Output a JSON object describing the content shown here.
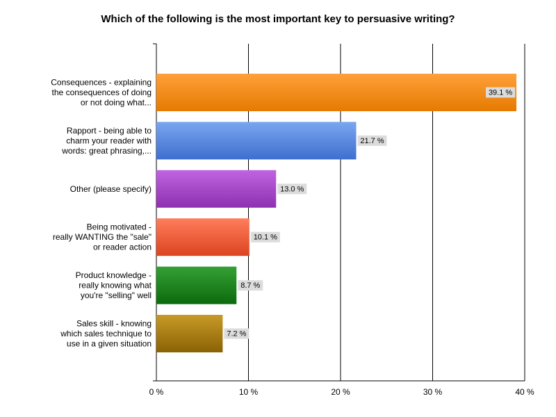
{
  "chart_data": {
    "type": "bar",
    "orientation": "horizontal",
    "title": "Which of the following is the most important key to persuasive writing?",
    "xlabel": "",
    "ylabel": "",
    "xlim": [
      0,
      40
    ],
    "x_ticks": [
      0,
      10,
      20,
      30,
      40
    ],
    "x_tick_labels": [
      "0 %",
      "10 %",
      "20 %",
      "30 %",
      "40 %"
    ],
    "grid": true,
    "legend": "none",
    "categories": [
      [
        "Consequences - explaining",
        "the consequences of doing",
        "or not doing what..."
      ],
      [
        "Rapport - being able to",
        "charm your reader with",
        "words: great phrasing,..."
      ],
      [
        "Other (please specify)"
      ],
      [
        "Being motivated -",
        "really WANTING the \"sale\"",
        "or reader action"
      ],
      [
        "Product knowledge -",
        "really knowing what",
        "you're \"selling\" well"
      ],
      [
        "Sales skill - knowing",
        "which sales technique to",
        "use in a given situation"
      ]
    ],
    "values": [
      39.1,
      21.7,
      13.0,
      10.1,
      8.7,
      7.2
    ],
    "data_labels": [
      "39.1 %",
      "21.7 %",
      "13.0 %",
      "10.1 %",
      "8.7 %",
      "7.2 %"
    ],
    "colors": [
      [
        "#ffa03a",
        "#e57a00"
      ],
      [
        "#7aa6f0",
        "#3f6fcf"
      ],
      [
        "#c064e0",
        "#8e30b0"
      ],
      [
        "#ff7d5c",
        "#dc4420"
      ],
      [
        "#35a035",
        "#0c6a0c"
      ],
      [
        "#c89a28",
        "#8a6205"
      ]
    ]
  }
}
